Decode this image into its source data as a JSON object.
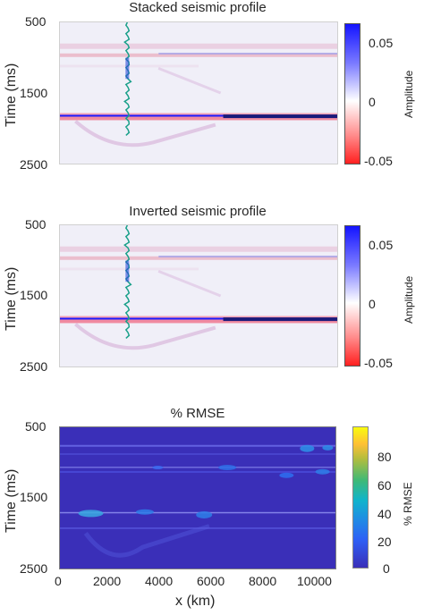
{
  "chart_data": [
    {
      "type": "heatmap",
      "title": "Stacked seismic profile",
      "ylabel": "Time (ms)",
      "xlabel": "",
      "ylim": [
        500,
        2500
      ],
      "yticks": [
        "500",
        "1500",
        "2500"
      ],
      "colorbar": {
        "label": "Amplitude",
        "ticks": [
          "0.05",
          "0",
          "-0.05"
        ],
        "range": [
          -0.05,
          0.07
        ],
        "colormap": "red-white-blue"
      },
      "reflectors": [
        {
          "time_ms": 850,
          "amplitude": -0.02
        },
        {
          "time_ms": 950,
          "amplitude": 0.02
        },
        {
          "time_ms": 1800,
          "amplitude": 0.07
        },
        {
          "time_ms": 1830,
          "amplitude": -0.04
        }
      ],
      "well_x_km": 2600
    },
    {
      "type": "heatmap",
      "title": "Inverted seismic profile",
      "ylabel": "Time (ms)",
      "xlabel": "",
      "ylim": [
        500,
        2500
      ],
      "yticks": [
        "500",
        "1500",
        "2500"
      ],
      "colorbar": {
        "label": "Amplitude",
        "ticks": [
          "0.05",
          "0",
          "-0.05"
        ],
        "range": [
          -0.05,
          0.07
        ],
        "colormap": "red-white-blue"
      },
      "reflectors": [
        {
          "time_ms": 850,
          "amplitude": -0.02
        },
        {
          "time_ms": 950,
          "amplitude": 0.02
        },
        {
          "time_ms": 1800,
          "amplitude": 0.07
        },
        {
          "time_ms": 1830,
          "amplitude": -0.04
        }
      ],
      "well_x_km": 2600
    },
    {
      "type": "heatmap",
      "title": "% RMSE",
      "ylabel": "Time (ms)",
      "xlabel": "x (km)",
      "xlim": [
        0,
        10700
      ],
      "ylim": [
        500,
        2500
      ],
      "xticks": [
        "0",
        "2000",
        "4000",
        "6000",
        "8000",
        "10000"
      ],
      "yticks": [
        "500",
        "1500",
        "2500"
      ],
      "colorbar": {
        "label": "% RMSE",
        "ticks": [
          "80",
          "60",
          "40",
          "20",
          "0"
        ],
        "range": [
          0,
          100
        ],
        "colormap": "parula"
      }
    }
  ],
  "colors": {
    "positive": "#1a1aff",
    "negative": "#ff3030",
    "rmse_background": "#3a2fb8",
    "well": "#1aa08a"
  }
}
